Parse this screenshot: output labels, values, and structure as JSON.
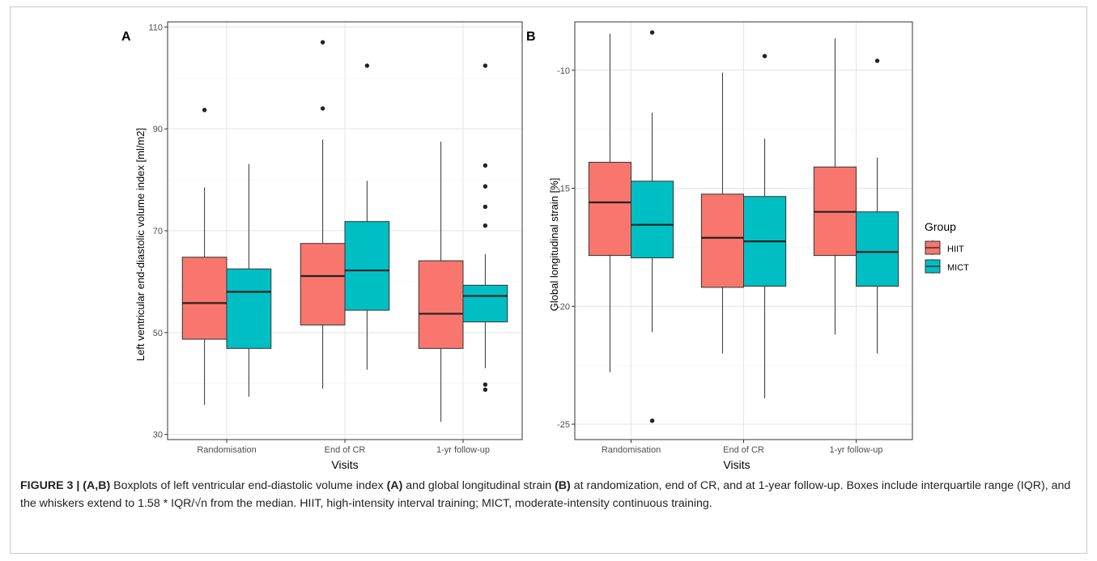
{
  "panels": [
    {
      "letter": "A",
      "ylabel": "Left ventricular end-diastolic volume index [ml/m2]",
      "xlabel": "Visits"
    },
    {
      "letter": "B",
      "ylabel": "Global longitudinal strain [%]",
      "xlabel": "Visits"
    }
  ],
  "legend": {
    "title": "Group",
    "items": [
      {
        "label": "HIIT",
        "color": "#F8766D"
      },
      {
        "label": "MICT",
        "color": "#00BFC4"
      }
    ]
  },
  "caption": {
    "figure_label": "FIGURE 3 | (A,B)",
    "text_1": " Boxplots of left ventricular end-diastolic volume index ",
    "ref_a": "(A)",
    "text_2": " and global longitudinal strain ",
    "ref_b": "(B)",
    "text_3": " at randomization, end of CR, and at 1-year follow-up. Boxes include interquartile range (IQR), and the whiskers extend to 1.58 * IQR/√n from the median. HIIT, high-intensity interval training; MICT, moderate-intensity continuous training."
  },
  "chart_data": [
    {
      "type": "boxplot",
      "panel": "A",
      "ylabel": "Left ventricular end-diastolic volume index [ml/m2]",
      "xlabel": "Visits",
      "ylim": [
        29,
        111
      ],
      "yticks": [
        30,
        50,
        70,
        90,
        110
      ],
      "categories": [
        "Randomisation",
        "End of CR",
        "1-yr follow-up"
      ],
      "grid": true,
      "series": [
        {
          "name": "HIIT",
          "color": "#F8766D",
          "boxes": [
            {
              "whisker_low": 35.8,
              "q1": 48.7,
              "median": 55.8,
              "q3": 64.8,
              "whisker_high": 78.5,
              "outliers": [
                93.7
              ]
            },
            {
              "whisker_low": 39.0,
              "q1": 51.5,
              "median": 61.1,
              "q3": 67.5,
              "whisker_high": 87.9,
              "outliers": [
                94.0,
                107.0
              ]
            },
            {
              "whisker_low": 32.5,
              "q1": 46.9,
              "median": 53.7,
              "q3": 64.1,
              "whisker_high": 87.5,
              "outliers": []
            }
          ]
        },
        {
          "name": "MICT",
          "color": "#00BFC4",
          "boxes": [
            {
              "whisker_low": 37.4,
              "q1": 46.9,
              "median": 58.0,
              "q3": 62.5,
              "whisker_high": 83.1,
              "outliers": []
            },
            {
              "whisker_low": 42.7,
              "q1": 54.4,
              "median": 62.2,
              "q3": 71.8,
              "whisker_high": 79.8,
              "outliers": [
                102.4
              ]
            },
            {
              "whisker_low": 43.0,
              "q1": 52.1,
              "median": 57.2,
              "q3": 59.3,
              "whisker_high": 65.4,
              "outliers": [
                38.8,
                39.8,
                71.0,
                74.7,
                78.7,
                82.8,
                102.4
              ]
            }
          ]
        }
      ]
    },
    {
      "type": "boxplot",
      "panel": "B",
      "ylabel": "Global longitudinal strain [%]",
      "xlabel": "Visits",
      "ylim": [
        -25.65,
        -7.95
      ],
      "yticks": [
        -10,
        -15,
        -20,
        -25
      ],
      "categories": [
        "Randomisation",
        "End of CR",
        "1-yr follow-up"
      ],
      "grid": true,
      "legend_position": "right",
      "series": [
        {
          "name": "HIIT",
          "color": "#F8766D",
          "boxes": [
            {
              "whisker_low": -22.8,
              "q1": -17.85,
              "median": -15.6,
              "q3": -13.9,
              "whisker_high": -8.45,
              "outliers": []
            },
            {
              "whisker_low": -22.0,
              "q1": -19.2,
              "median": -17.1,
              "q3": -15.25,
              "whisker_high": -10.1,
              "outliers": []
            },
            {
              "whisker_low": -21.2,
              "q1": -17.85,
              "median": -16.0,
              "q3": -14.1,
              "whisker_high": -8.65,
              "outliers": []
            }
          ]
        },
        {
          "name": "MICT",
          "color": "#00BFC4",
          "boxes": [
            {
              "whisker_low": -21.1,
              "q1": -17.95,
              "median": -16.55,
              "q3": -14.7,
              "whisker_high": -11.8,
              "outliers": [
                -8.4,
                -24.85
              ]
            },
            {
              "whisker_low": -23.9,
              "q1": -19.15,
              "median": -17.25,
              "q3": -15.35,
              "whisker_high": -12.9,
              "outliers": [
                -9.4
              ]
            },
            {
              "whisker_low": -22.0,
              "q1": -19.15,
              "median": -17.7,
              "q3": -16.0,
              "whisker_high": -13.7,
              "outliers": [
                -9.6
              ]
            }
          ]
        }
      ]
    }
  ]
}
